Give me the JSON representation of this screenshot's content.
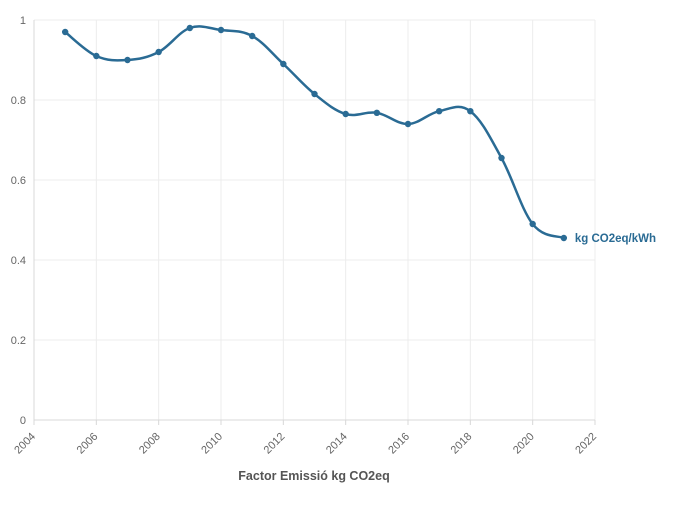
{
  "chart_data": {
    "type": "line",
    "title": "",
    "xlabel": "Factor Emissió kg CO2eq",
    "ylabel": "",
    "xlim": [
      2004,
      2022
    ],
    "ylim": [
      0,
      1
    ],
    "x_ticks": [
      2004,
      2006,
      2008,
      2010,
      2012,
      2014,
      2016,
      2018,
      2020,
      2022
    ],
    "x_tick_labels": [
      "2004",
      "2006",
      "2008",
      "2010",
      "2012",
      "2014",
      "2016",
      "2018",
      "2020",
      "2022"
    ],
    "y_ticks": [
      0,
      0.2,
      0.4,
      0.6,
      0.8,
      1
    ],
    "y_tick_labels": [
      "0",
      "0.2",
      "0.4",
      "0.6",
      "0.8",
      "1"
    ],
    "grid": true,
    "series": [
      {
        "name": "kg CO2eq/kWh",
        "color": "#2a6b94",
        "x": [
          2005,
          2006,
          2007,
          2008,
          2009,
          2010,
          2011,
          2012,
          2013,
          2014,
          2015,
          2016,
          2017,
          2018,
          2019,
          2020,
          2021
        ],
        "y": [
          0.97,
          0.91,
          0.9,
          0.92,
          0.98,
          0.975,
          0.96,
          0.89,
          0.815,
          0.765,
          0.768,
          0.74,
          0.772,
          0.772,
          0.655,
          0.49,
          0.455
        ]
      }
    ],
    "colors": {
      "grid": "#ececec",
      "axis": "#d8d8d8",
      "tick_label": "#666666",
      "axis_title": "#555555"
    }
  }
}
